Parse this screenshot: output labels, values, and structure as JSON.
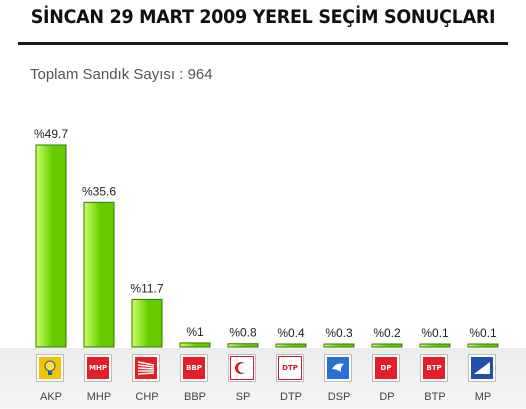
{
  "header": {
    "title": "SİNCAN 29 MART 2009 YEREL SEÇİM SONUÇLARI",
    "subtitle": "Toplam Sandık Sayısı : 964"
  },
  "colors": {
    "bar_fill_light": "#ccff66",
    "bar_fill_dark": "#66cc00",
    "bar_stroke": "#2f7a00"
  },
  "chart_data": {
    "type": "bar",
    "title": "SİNCAN 29 MART 2009 YEREL SEÇİM SONUÇLARI",
    "subtitle": "Toplam Sandık Sayısı : 964",
    "categories": [
      "AKP",
      "MHP",
      "CHP",
      "BBP",
      "SP",
      "DTP",
      "DSP",
      "DP",
      "BTP",
      "MP"
    ],
    "values": [
      49.7,
      35.6,
      11.7,
      1,
      0.8,
      0.4,
      0.3,
      0.2,
      0.1,
      0.1
    ],
    "data_labels": [
      "%49.7",
      "%35.6",
      "%11.7",
      "%1",
      "%0.8",
      "%0.4",
      "%0.3",
      "%0.2",
      "%0.1",
      "%0.1"
    ],
    "xlabel": "",
    "ylabel": "",
    "ylim": [
      0,
      49.7
    ],
    "grid": false,
    "legend": "none"
  },
  "party_logos": [
    {
      "party": "AKP",
      "icon": "akp-lightbulb-icon",
      "bg": "#f3c200",
      "fg": "#1f5fa8",
      "text": ""
    },
    {
      "party": "MHP",
      "icon": "mhp-crescents-icon",
      "bg": "#e31e24",
      "fg": "#ffffff",
      "text": "MHP"
    },
    {
      "party": "CHP",
      "icon": "chp-six-arrows-icon",
      "bg": "#e31e24",
      "fg": "#ffffff",
      "text": ""
    },
    {
      "party": "BBP",
      "icon": "bbp-crescent-icon",
      "bg": "#e31e24",
      "fg": "#ffffff",
      "text": "BBP"
    },
    {
      "party": "SP",
      "icon": "sp-crescent-icon",
      "bg": "#ffffff",
      "fg": "#d71920",
      "text": ""
    },
    {
      "party": "DTP",
      "icon": "dtp-flower-icon",
      "bg": "#ffffff",
      "fg": "#d71920",
      "text": "DTP"
    },
    {
      "party": "DSP",
      "icon": "dsp-dove-icon",
      "bg": "#2a6fd6",
      "fg": "#ffffff",
      "text": ""
    },
    {
      "party": "DP",
      "icon": "dp-horse-icon",
      "bg": "#e31e24",
      "fg": "#ffffff",
      "text": "DP"
    },
    {
      "party": "BTP",
      "icon": "btp-stars-icon",
      "bg": "#e31e24",
      "fg": "#ffffff",
      "text": "BTP"
    },
    {
      "party": "MP",
      "icon": "mp-arrow-icon",
      "bg": "#1f4fa8",
      "fg": "#ffffff",
      "text": ""
    }
  ]
}
